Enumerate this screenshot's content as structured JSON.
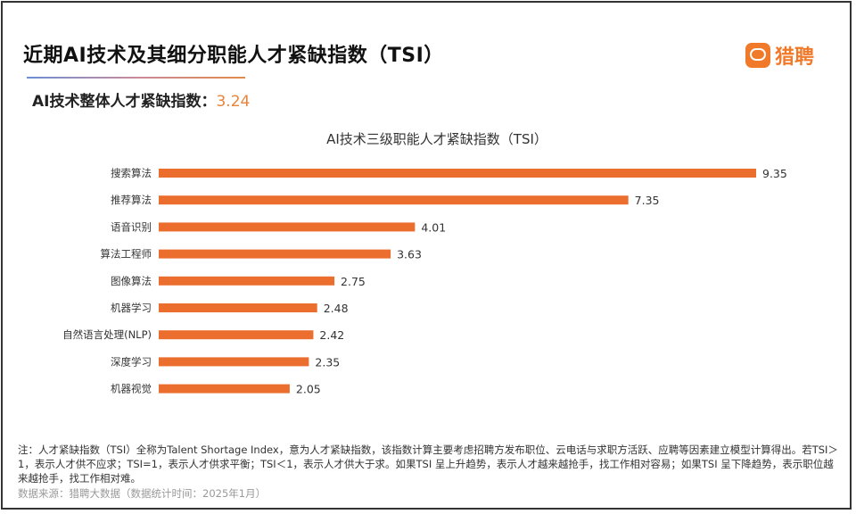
{
  "header": {
    "title": "近期AI技术及其细分职能人才紧缺指数（TSI）",
    "overall_label": "AI技术整体人才紧缺指数：",
    "overall_value": "3.24",
    "logo_text": "猎聘"
  },
  "colors": {
    "bar": "#ec6e2e",
    "accent": "#e8833a"
  },
  "chart_data": {
    "type": "bar",
    "orientation": "horizontal",
    "title": "AI技术三级职能人才紧缺指数（TSI）",
    "categories": [
      "搜索算法",
      "推荐算法",
      "语音识别",
      "算法工程师",
      "图像算法",
      "机器学习",
      "自然语言处理(NLP)",
      "深度学习",
      "机器视觉"
    ],
    "values": [
      9.35,
      7.35,
      4.01,
      3.63,
      2.75,
      2.48,
      2.42,
      2.35,
      2.05
    ],
    "value_labels": [
      "9.35",
      "7.35",
      "4.01",
      "3.63",
      "2.75",
      "2.48",
      "2.42",
      "2.35",
      "2.05"
    ],
    "xlim": [
      0,
      9.35
    ],
    "grid": false
  },
  "footer": {
    "note": "注：人才紧缺指数（TSI）全称为Talent Shortage Index，意为人才紧缺指数，该指数计算主要考虑招聘方发布职位、云电话与求职方活跃、应聘等因素建立模型计算得出。若TSI＞1，表示人才供不应求；TSI=1，表示人才供求平衡；TSI＜1，表示人才供大于求。如果TSI 呈上升趋势，表示人才越来越抢手，找工作相对容易；如果TSI 呈下降趋势，表示职位越来越抢手，找工作相对难。",
    "source": "数据来源：猎聘大数据（数据统计时间：2025年1月）"
  }
}
